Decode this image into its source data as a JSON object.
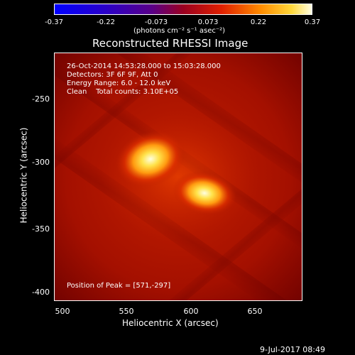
{
  "colorbar": {
    "ticks": [
      "-0.37",
      "-0.22",
      "-0.073",
      "0.073",
      "0.22",
      "0.37"
    ],
    "units": "(photons cm⁻² s⁻¹ asec⁻²)"
  },
  "title": "Reconstructed RHESSI Image",
  "annotations": {
    "time_range": "26-Oct-2014 14:53:28.000 to 15:03:28.000",
    "detectors": "Detectors: 3F 6F 9F, Att 0",
    "energy": "Energy Range: 6.0 - 12.0 keV",
    "clean": "Clean    Total counts: 3.10E+05",
    "peak": "Position of Peak = [571,-297]"
  },
  "axes": {
    "xlabel": "Heliocentric X (arcsec)",
    "ylabel": "Heliocentric Y (arcsec)",
    "xticks": [
      "500",
      "550",
      "600",
      "650"
    ],
    "yticks": [
      "-250",
      "-300",
      "-350",
      "-400"
    ]
  },
  "date_stamp": "9-Jul-2017 08:49"
}
